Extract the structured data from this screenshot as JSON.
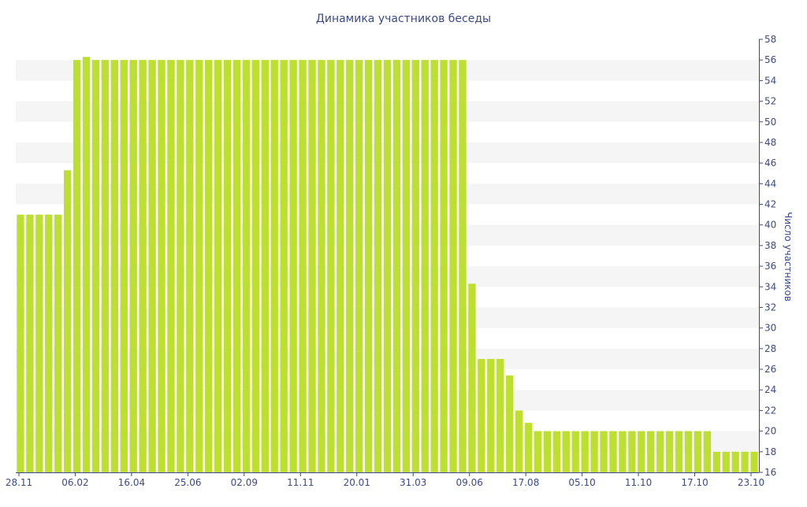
{
  "chart_data": {
    "type": "bar",
    "title": "Динамика участников беседы",
    "xlabel": "",
    "ylabel": "Число участников",
    "ylim": [
      16,
      58
    ],
    "yticks": [
      16,
      18,
      20,
      22,
      24,
      26,
      28,
      30,
      32,
      34,
      36,
      38,
      40,
      42,
      44,
      46,
      48,
      50,
      52,
      54,
      56,
      58
    ],
    "xtick_labels": [
      "28.11",
      "06.02",
      "16.04",
      "25.06",
      "02.09",
      "11.11",
      "20.01",
      "31.03",
      "09.06",
      "17.08",
      "05.10",
      "11.10",
      "17.10",
      "23.10"
    ],
    "grid": "alternating horizontal bands",
    "y_axis_side": "right",
    "colors": {
      "bar": "#bddf2f",
      "text": "#3b4a8a",
      "band": "#f5f5f5",
      "axis": "#3b4a8a"
    },
    "series": [
      {
        "values": [
          41,
          41,
          41,
          41,
          41,
          45.3,
          56,
          56.3,
          56,
          56,
          56,
          56,
          56,
          56,
          56,
          56,
          56,
          56,
          56,
          56,
          56,
          56,
          56,
          56,
          56,
          56,
          56,
          56,
          56,
          56,
          56,
          56,
          56,
          56,
          56,
          56,
          56,
          56,
          56,
          56,
          56,
          56,
          56,
          56,
          56,
          56,
          56,
          56,
          34.3,
          27,
          27,
          27,
          25.4,
          22,
          20.8,
          20,
          20,
          20,
          20,
          20,
          20,
          20,
          20,
          20,
          20,
          20,
          20,
          20,
          20,
          20,
          20,
          20,
          20,
          20,
          18,
          18,
          18,
          18,
          18
        ]
      }
    ]
  }
}
